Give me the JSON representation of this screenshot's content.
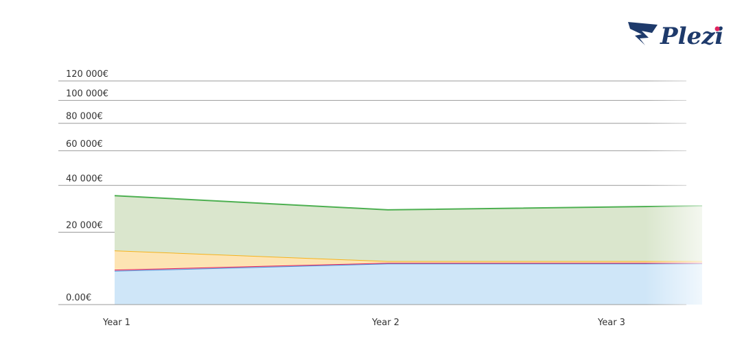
{
  "logo": "Plezi",
  "chart_data": {
    "type": "stacked-area",
    "categories": [
      "Year 1",
      "Year 2",
      "Year 3"
    ],
    "series": [
      {
        "color": "#4a90d9",
        "fill": "#cfe6f8",
        "values": [
          8000,
          10000,
          10000
        ]
      },
      {
        "color": "#e0245e",
        "fill": "#f3b8c9",
        "values": [
          300,
          200,
          200
        ]
      },
      {
        "color": "#f5b21b",
        "fill": "#fde4b3",
        "values": [
          5600,
          500,
          500
        ]
      },
      {
        "color": "#4caf50",
        "fill": "#dae6cd",
        "values": [
          21100,
          18000,
          19700
        ]
      }
    ],
    "ylim": [
      0,
      120000
    ],
    "yticks": [
      {
        "value": 0,
        "label": "0.00€"
      },
      {
        "value": 20000,
        "label": "20 000€"
      },
      {
        "value": 40000,
        "label": "40 000€"
      },
      {
        "value": 60000,
        "label": "60 000€"
      },
      {
        "value": 80000,
        "label": "80 000€"
      },
      {
        "value": 100000,
        "label": "100 000€"
      },
      {
        "value": 120000,
        "label": "120 000€"
      }
    ],
    "grid": true
  }
}
